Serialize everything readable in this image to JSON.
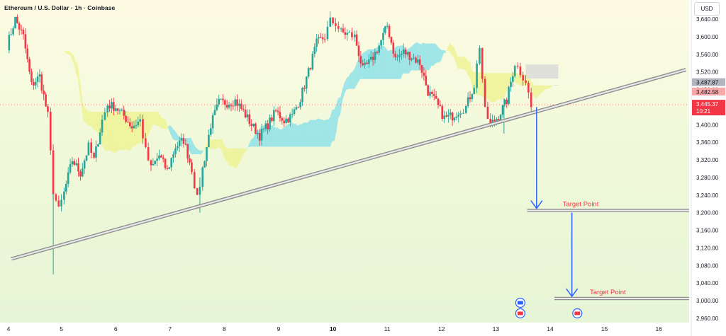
{
  "header": {
    "symbol": "Ethereum / U.S. Dollar · 1h · Coinbase"
  },
  "currency_button": {
    "label": "USD"
  },
  "chart_data": {
    "type": "candlestick",
    "title": "Ethereum / U.S. Dollar · 1h · Coinbase",
    "ylim": [
      2945,
      3675
    ],
    "y_ticks": [
      3640,
      3600,
      3560,
      3520,
      3480,
      3440,
      3400,
      3360,
      3320,
      3280,
      3240,
      3200,
      3160,
      3120,
      3080,
      3040,
      3000,
      2960
    ],
    "y_tick_labels": [
      "3,640.00",
      "3,600.00",
      "3,560.00",
      "3,520.00",
      "3,480.00",
      "3,440.00",
      "3,400.00",
      "3,360.00",
      "3,320.00",
      "3,280.00",
      "3,240.00",
      "3,200.00",
      "3,160.00",
      "3,120.00",
      "3,080.00",
      "3,040.00",
      "3,000.00",
      "2,960.00"
    ],
    "x_ticks": [
      {
        "label": "4",
        "day": 4
      },
      {
        "label": "5",
        "day": 5
      },
      {
        "label": "6",
        "day": 6
      },
      {
        "label": "7",
        "day": 7
      },
      {
        "label": "8",
        "day": 8
      },
      {
        "label": "9",
        "day": 9
      },
      {
        "label": "10",
        "day": 10
      },
      {
        "label": "11",
        "day": 11
      },
      {
        "label": "12",
        "day": 12
      },
      {
        "label": "13",
        "day": 13
      },
      {
        "label": "14",
        "day": 14
      },
      {
        "label": "15",
        "day": 15
      },
      {
        "label": "16",
        "day": 16
      }
    ],
    "price_path": [
      [
        4.0,
        3580
      ],
      [
        4.15,
        3640
      ],
      [
        4.3,
        3600
      ],
      [
        4.45,
        3490
      ],
      [
        4.6,
        3510
      ],
      [
        4.75,
        3420
      ],
      [
        4.85,
        3250
      ],
      [
        4.95,
        3205
      ],
      [
        5.05,
        3245
      ],
      [
        5.2,
        3320
      ],
      [
        5.35,
        3290
      ],
      [
        5.5,
        3350
      ],
      [
        5.6,
        3320
      ],
      [
        5.75,
        3410
      ],
      [
        5.85,
        3445
      ],
      [
        6.0,
        3440
      ],
      [
        6.15,
        3420
      ],
      [
        6.3,
        3395
      ],
      [
        6.45,
        3410
      ],
      [
        6.55,
        3340
      ],
      [
        6.65,
        3300
      ],
      [
        6.8,
        3330
      ],
      [
        6.95,
        3295
      ],
      [
        7.1,
        3350
      ],
      [
        7.25,
        3365
      ],
      [
        7.4,
        3300
      ],
      [
        7.5,
        3230
      ],
      [
        7.6,
        3300
      ],
      [
        7.75,
        3400
      ],
      [
        7.9,
        3450
      ],
      [
        8.05,
        3450
      ],
      [
        8.2,
        3455
      ],
      [
        8.35,
        3430
      ],
      [
        8.5,
        3400
      ],
      [
        8.65,
        3375
      ],
      [
        8.8,
        3400
      ],
      [
        8.95,
        3430
      ],
      [
        9.1,
        3410
      ],
      [
        9.25,
        3420
      ],
      [
        9.4,
        3460
      ],
      [
        9.55,
        3520
      ],
      [
        9.7,
        3585
      ],
      [
        9.85,
        3600
      ],
      [
        9.95,
        3635
      ],
      [
        10.05,
        3630
      ],
      [
        10.15,
        3610
      ],
      [
        10.3,
        3605
      ],
      [
        10.4,
        3600
      ],
      [
        10.55,
        3525
      ],
      [
        10.7,
        3545
      ],
      [
        10.85,
        3580
      ],
      [
        11.0,
        3625
      ],
      [
        11.15,
        3550
      ],
      [
        11.3,
        3565
      ],
      [
        11.45,
        3555
      ],
      [
        11.6,
        3540
      ],
      [
        11.75,
        3475
      ],
      [
        11.9,
        3450
      ],
      [
        12.05,
        3415
      ],
      [
        12.2,
        3420
      ],
      [
        12.35,
        3435
      ],
      [
        12.45,
        3440
      ],
      [
        12.6,
        3490
      ],
      [
        12.7,
        3580
      ],
      [
        12.8,
        3430
      ],
      [
        12.9,
        3400
      ],
      [
        13.05,
        3420
      ],
      [
        13.2,
        3455
      ],
      [
        13.35,
        3540
      ],
      [
        13.45,
        3520
      ],
      [
        13.55,
        3500
      ],
      [
        13.65,
        3440
      ]
    ],
    "last_price": {
      "value": 3445.37,
      "label": "3,445.37",
      "countdown": "10:21",
      "color": "#f23645"
    },
    "cloud_labels": [
      {
        "label": "3,487.87",
        "value": 3487.87,
        "color": "#b2b5be"
      },
      {
        "label": "3,482.58",
        "value": 3482.58,
        "color": "#f7a9a9"
      }
    ],
    "trendline": {
      "from": [
        4.0,
        3095
      ],
      "to": [
        16.5,
        3525
      ]
    },
    "target_levels": [
      {
        "label": "Target Point",
        "value": 3205,
        "from_day": 14.1,
        "to_day": 16.5
      },
      {
        "label": "Target Point",
        "value": 3005,
        "from_day": 14.6,
        "to_day": 16.5
      }
    ],
    "arrows": [
      {
        "day": 13.75,
        "from": 3440,
        "to": 3205
      },
      {
        "day": 14.4,
        "from": 3200,
        "to": 3005
      }
    ],
    "colors": {
      "up": "#26a69a",
      "down": "#f23645",
      "arrow": "#2962ff",
      "target_text": "#f23645",
      "cloud_bull": "#80deea",
      "cloud_bear": "#eef28a"
    }
  }
}
